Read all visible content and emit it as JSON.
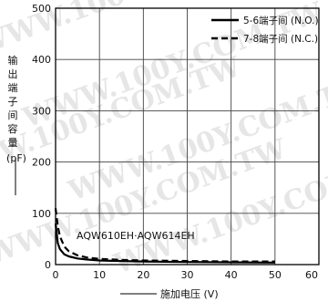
{
  "chart_data": {
    "type": "line",
    "title": "",
    "model_label": "AQW610EH·AQW614EH",
    "xlabel": "施加电压 (V)",
    "ylabel_chars": [
      "输",
      "出",
      "端",
      "子",
      "间",
      "容",
      "量"
    ],
    "ylabel_unit": "(pF)",
    "xlim": [
      0,
      60
    ],
    "ylim": [
      0,
      500
    ],
    "x_ticks": [
      "0",
      "10",
      "20",
      "30",
      "40",
      "50",
      "60"
    ],
    "y_ticks": [
      "0",
      "100",
      "200",
      "300",
      "400",
      "500"
    ],
    "grid": true,
    "legend_position": "top-right",
    "series": [
      {
        "name": "5-6端子间 (N.O.)",
        "style": "solid",
        "x": [
          0,
          0.5,
          1,
          2,
          3,
          5,
          7,
          10,
          15,
          20,
          30,
          40,
          50
        ],
        "y": [
          80,
          42,
          30,
          20,
          16,
          12,
          10,
          8,
          7,
          6,
          5,
          4.5,
          4
        ]
      },
      {
        "name": "7-8端子间 (N.C.)",
        "style": "dashed",
        "x": [
          0,
          0.5,
          1,
          2,
          3,
          5,
          7,
          10,
          15,
          20,
          30,
          40,
          50
        ],
        "y": [
          110,
          75,
          55,
          35,
          26,
          18,
          14,
          11,
          9,
          8,
          7,
          6,
          6
        ]
      }
    ],
    "watermark": "WWW.100Y.COM.TW"
  }
}
